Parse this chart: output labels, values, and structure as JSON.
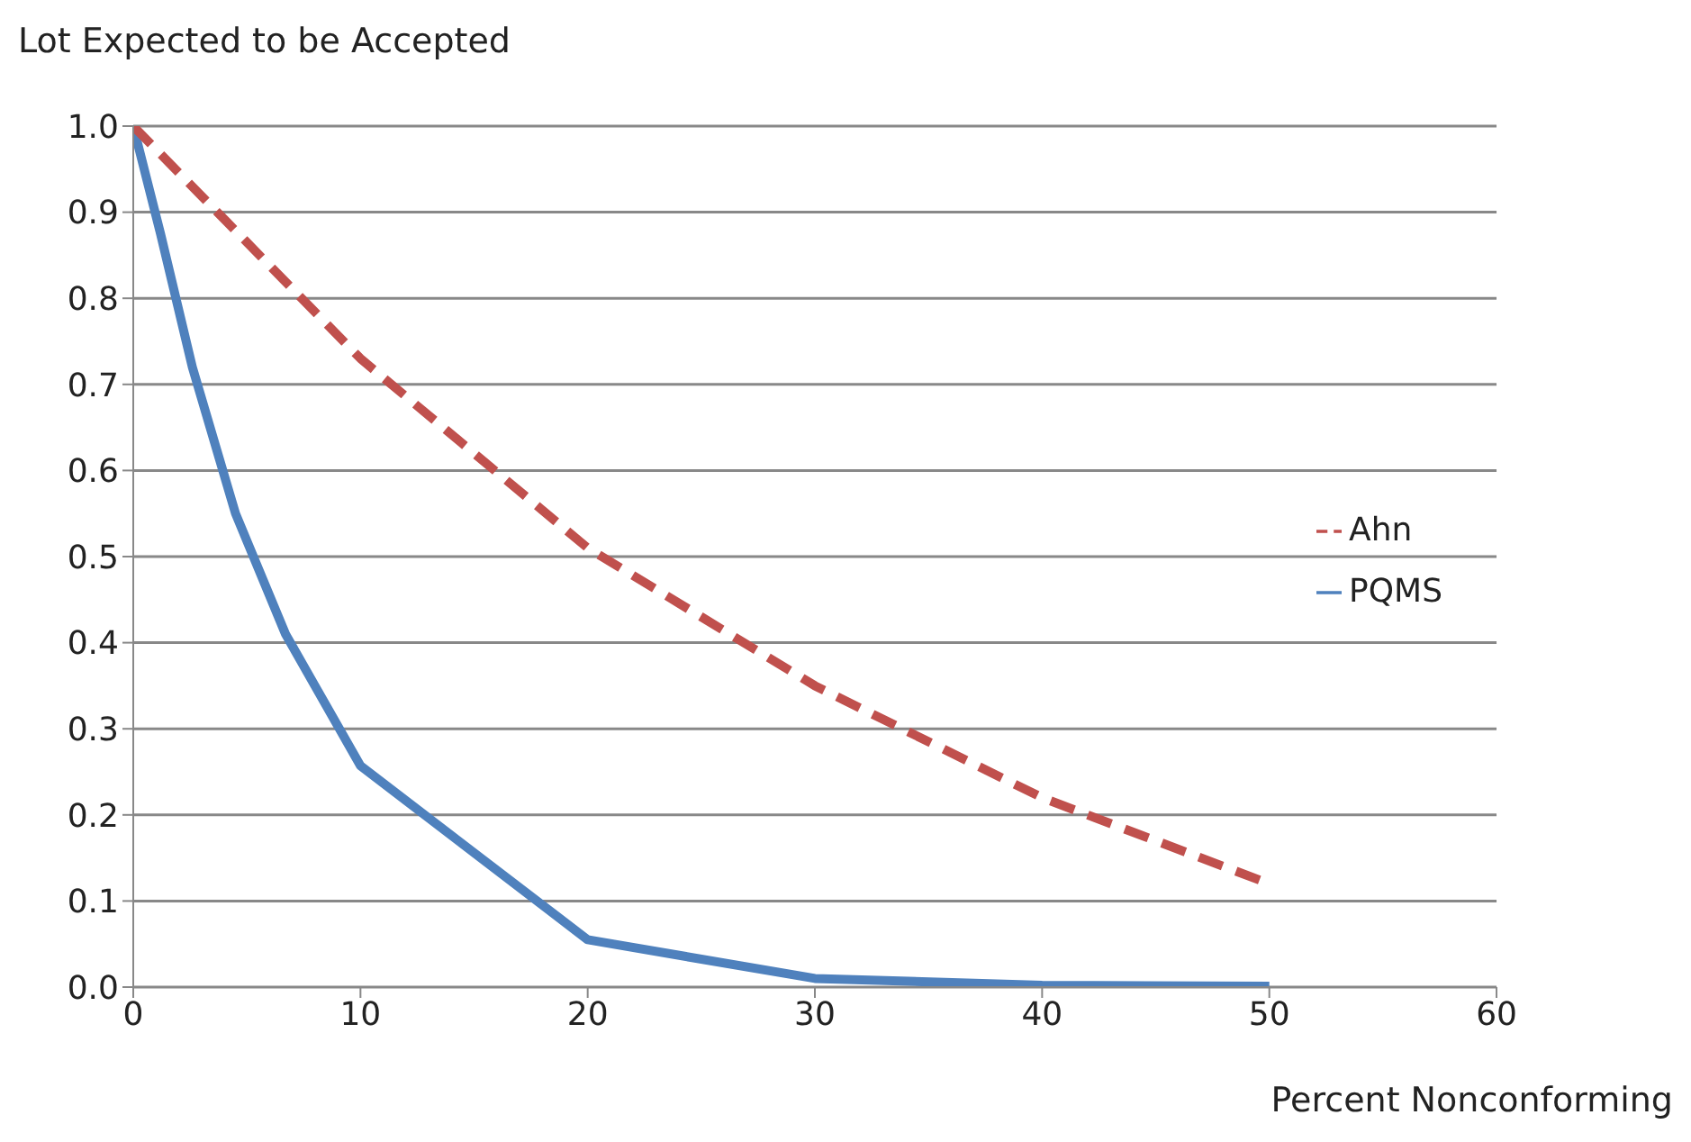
{
  "chart_data": {
    "type": "line",
    "ylabel": "Lot Expected to be Accepted",
    "xlabel": "Percent Nonconforming",
    "xlim": [
      0,
      60
    ],
    "xticks": [
      0,
      10,
      20,
      30,
      40,
      50,
      60
    ],
    "ylim": [
      0,
      1
    ],
    "yticks": [
      {
        "value": 0,
        "label": "0.0"
      },
      {
        "value": 0.1,
        "label": "0.1"
      },
      {
        "value": 0.2,
        "label": "0.2"
      },
      {
        "value": 0.3,
        "label": "0.3"
      },
      {
        "value": 0.4,
        "label": "0.4"
      },
      {
        "value": 0.5,
        "label": "0.5"
      },
      {
        "value": 0.6,
        "label": "0.6"
      },
      {
        "value": 0.7,
        "label": "0.7"
      },
      {
        "value": 0.8,
        "label": "0.8"
      },
      {
        "value": 0.9,
        "label": "0.9"
      },
      {
        "value": 1,
        "label": "1.0"
      }
    ],
    "grid": "y",
    "legend": "right",
    "marker": "none",
    "series": [
      {
        "name": "PQMS",
        "color": "#4f81bd",
        "line_style": "solid",
        "x": [
          0,
          1.2,
          2.6,
          4.5,
          6.7,
          10,
          20,
          30,
          40,
          50
        ],
        "values": [
          1,
          0.875,
          0.72,
          0.55,
          0.41,
          0.257,
          0.055,
          0.01,
          0.002,
          0.001
        ]
      },
      {
        "name": "Ahn",
        "color": "#c0504d",
        "line_style": "dashed",
        "x": [
          0,
          10,
          20,
          30,
          40,
          50
        ],
        "values": [
          1,
          0.73,
          0.51,
          0.35,
          0.22,
          0.12
        ]
      }
    ]
  }
}
